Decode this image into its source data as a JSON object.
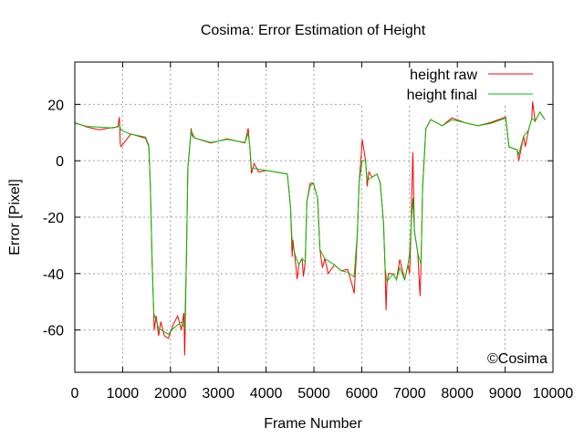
{
  "chart_data": {
    "type": "line",
    "title": "Cosima: Error Estimation of Height",
    "xlabel": "Frame Number",
    "ylabel": "Error [Pixel]",
    "xlim": [
      0,
      10000
    ],
    "ylim": [
      -75,
      35
    ],
    "xticks": [
      0,
      1000,
      2000,
      3000,
      4000,
      5000,
      6000,
      7000,
      8000,
      9000,
      10000
    ],
    "yticks": [
      -60,
      -40,
      -20,
      0,
      20
    ],
    "grid": true,
    "legend_position": "top-right",
    "annotation": "©Cosima",
    "series": [
      {
        "name": "height raw",
        "color": "#ff0000",
        "x": [
          0,
          252,
          500,
          798,
          900,
          934,
          950,
          968,
          1172,
          1479,
          1547,
          1581,
          1616,
          1650,
          1660,
          1700,
          1752,
          1800,
          1870,
          1957,
          2059,
          2150,
          2229,
          2280,
          2297,
          2331,
          2365,
          2433,
          2450,
          2502,
          2843,
          3183,
          3558,
          3626,
          3660,
          3694,
          3750,
          3850,
          4001,
          4444,
          4512,
          4546,
          4560,
          4614,
          4650,
          4683,
          4751,
          4780,
          4819,
          4853,
          4921,
          4989,
          5078,
          5126,
          5180,
          5228,
          5300,
          5432,
          5569,
          5705,
          5800,
          5841,
          5870,
          5910,
          5944,
          5990,
          6012,
          6080,
          6114,
          6150,
          6217,
          6319,
          6387,
          6456,
          6489,
          6510,
          6524,
          6560,
          6660,
          6728,
          6796,
          6899,
          6967,
          7001,
          7035,
          7050,
          7069,
          7103,
          7172,
          7220,
          7240,
          7274,
          7342,
          7444,
          7683,
          7887,
          8160,
          8432,
          8705,
          9012,
          9080,
          9250,
          9284,
          9386,
          9420,
          9489,
          9557,
          9575,
          9625,
          9727,
          9830
        ],
        "y": [
          13.5,
          12.0,
          11.0,
          11.8,
          12.0,
          15.5,
          6.0,
          5.0,
          9.5,
          8.0,
          5.0,
          -9,
          -35.8,
          -54,
          -60,
          -55,
          -62,
          -57,
          -62,
          -63,
          -58,
          -55,
          -60,
          -54,
          -69,
          -37.9,
          -2.6,
          11.5,
          9,
          8.1,
          6.3,
          7.8,
          6.3,
          11.5,
          4.5,
          -4.5,
          -1,
          -4,
          -3.4,
          -4.7,
          -16.5,
          -34,
          -28,
          -36,
          -42,
          -36.9,
          -34.7,
          -41,
          -35.8,
          -14.4,
          -8,
          -7.9,
          -13.3,
          -31.5,
          -38,
          -34.7,
          -40,
          -36.9,
          -39,
          -38.5,
          -44,
          -47,
          -39,
          -25.1,
          -7.9,
          2,
          7.5,
          0.1,
          -9,
          -4,
          -5.8,
          -4.7,
          -7.9,
          -21.9,
          -37.9,
          -53,
          -44,
          -40,
          -40.1,
          -42.2,
          -35,
          -42.2,
          -36.9,
          -40,
          -22.9,
          -10,
          3,
          -25.1,
          -32.6,
          -48,
          -36.9,
          -9,
          11.4,
          14.6,
          12.4,
          15.2,
          13.5,
          12.4,
          13.6,
          15.5,
          4.9,
          3.9,
          0,
          8.7,
          5,
          10.8,
          15.1,
          21,
          14.0,
          17.3,
          14.6
        ]
      },
      {
        "name": "height final",
        "color": "#00c000",
        "x": [
          0,
          252,
          798,
          900,
          934,
          968,
          1172,
          1479,
          1547,
          1581,
          1616,
          1650,
          1752,
          1957,
          2059,
          2229,
          2297,
          2331,
          2365,
          2433,
          2502,
          2843,
          3183,
          3558,
          3626,
          3660,
          3694,
          4001,
          4444,
          4512,
          4546,
          4614,
          4683,
          4751,
          4819,
          4853,
          4921,
          4989,
          5078,
          5126,
          5228,
          5432,
          5569,
          5705,
          5841,
          5910,
          5944,
          6012,
          6080,
          6114,
          6217,
          6319,
          6387,
          6456,
          6489,
          6524,
          6660,
          6728,
          6796,
          6899,
          6967,
          7001,
          7035,
          7069,
          7103,
          7172,
          7240,
          7274,
          7342,
          7444,
          7683,
          7887,
          8160,
          8432,
          8705,
          9012,
          9080,
          9250,
          9284,
          9386,
          9489,
          9557,
          9625,
          9727,
          9830
        ],
        "y": [
          13.3,
          12.2,
          11.6,
          12.2,
          12.6,
          10.8,
          9.4,
          8.4,
          5.5,
          -9,
          -35.8,
          -54,
          -59.4,
          -61.5,
          -59.4,
          -57.2,
          -59.4,
          -37.9,
          -2.6,
          10.8,
          8.1,
          6.5,
          7.6,
          6.5,
          9.8,
          4.9,
          -2.6,
          -3.4,
          -4.7,
          -16.5,
          -29.4,
          -33.7,
          -36.9,
          -34.7,
          -35.8,
          -14.4,
          -9,
          -7.9,
          -13.3,
          -31.5,
          -34.7,
          -36.9,
          -39,
          -39.5,
          -41.2,
          -25.1,
          -7.9,
          0.1,
          0.1,
          -6.9,
          -5.8,
          -4.7,
          -7.9,
          -21.9,
          -37.9,
          -42.8,
          -40.1,
          -42.2,
          -37.9,
          -42.2,
          -36.9,
          -32.6,
          -22.9,
          -13.3,
          -25.1,
          -32.6,
          -36.9,
          -9,
          11.4,
          14.6,
          12.4,
          14.6,
          13.5,
          12.4,
          13.3,
          15.1,
          4.9,
          3.9,
          2.3,
          8.7,
          10.8,
          15.1,
          14.0,
          17.3,
          14.6
        ]
      }
    ]
  }
}
